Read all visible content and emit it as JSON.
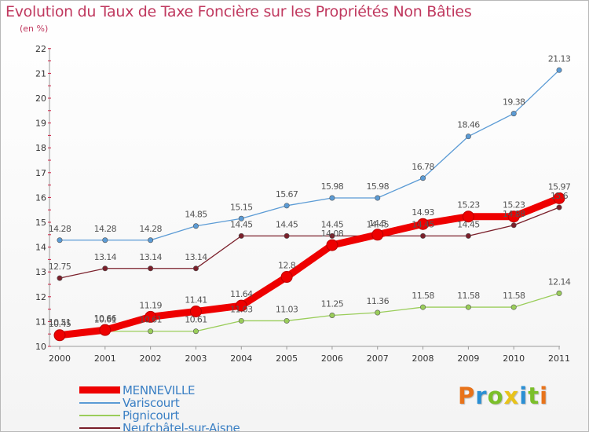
{
  "header": {
    "title": "Evolution du Taux de Taxe Foncière sur les Propriétés Non Bâties",
    "subtitle": "(en %)"
  },
  "logo": {
    "text": "Proxiti",
    "colors": [
      "#e8731a",
      "#2a8fd4",
      "#7bbf2a",
      "#e8c31a",
      "#2a8fd4",
      "#7bbf2a",
      "#e8731a"
    ]
  },
  "chart_data": {
    "type": "line",
    "title": "Evolution du Taux de Taxe Foncière sur les Propriétés Non Bâties",
    "ylabel": "(en %)",
    "x": [
      "2000",
      "2001",
      "2002",
      "2003",
      "2004",
      "2005",
      "2006",
      "2007",
      "2008",
      "2009",
      "2010",
      "2011"
    ],
    "ylim": [
      10,
      22
    ],
    "yticks": [
      "10",
      "11",
      "12",
      "13",
      "14",
      "15",
      "16",
      "17",
      "18",
      "19",
      "20",
      "21",
      "22"
    ],
    "grid": false,
    "legend_position": "bottom-left",
    "series": [
      {
        "name": "MENNEVILLE",
        "color": "#ee0000",
        "values": [
          10.45,
          10.66,
          11.19,
          11.41,
          11.64,
          12.8,
          14.08,
          14.5,
          14.93,
          15.23,
          15.23,
          15.97
        ],
        "labels": [
          "10.45",
          "10.66",
          "11.19",
          "11.41",
          "11.64",
          "12.8",
          "14.08",
          "14.5",
          "14.93",
          "15.23",
          "15.23",
          "15.97"
        ]
      },
      {
        "name": "Variscourt",
        "color": "#5b9bd5",
        "values": [
          14.28,
          14.28,
          14.28,
          14.85,
          15.15,
          15.67,
          15.98,
          15.98,
          16.78,
          18.46,
          19.38,
          21.13
        ],
        "labels": [
          "14.28",
          "14.28",
          "14.28",
          "14.85",
          "15.15",
          "15.67",
          "15.98",
          "15.98",
          "16.78",
          "18.46",
          "19.38",
          "21.13"
        ]
      },
      {
        "name": "Pignicourt",
        "color": "#9acd5a",
        "values": [
          10.51,
          10.61,
          10.61,
          10.61,
          11.03,
          11.03,
          11.25,
          11.36,
          11.58,
          11.58,
          11.58,
          12.14
        ],
        "labels": [
          "10.51",
          "10.61",
          "10.61",
          "10.61",
          "11.03",
          "11.03",
          "11.25",
          "11.36",
          "11.58",
          "11.58",
          "11.58",
          "12.14"
        ]
      },
      {
        "name": "Neufchâtel-sur-Aisne",
        "color": "#7a1f2a",
        "values": [
          12.75,
          13.14,
          13.14,
          13.14,
          14.45,
          14.45,
          14.45,
          14.45,
          14.45,
          14.45,
          14.88,
          15.6
        ],
        "labels": [
          "12.75",
          "13.14",
          "13.14",
          "13.14",
          "14.45",
          "14.45",
          "14.45",
          "14.45",
          "14.45",
          "14.45",
          "14.88",
          "15.6"
        ]
      }
    ]
  }
}
